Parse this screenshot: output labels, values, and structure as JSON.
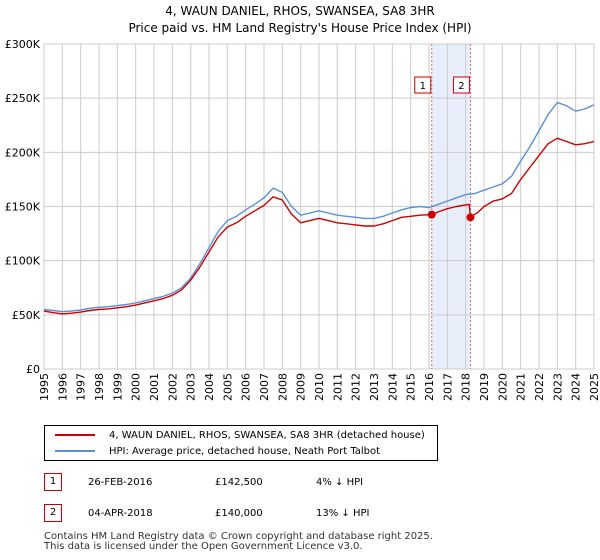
{
  "title_line1": "4, WAUN DANIEL, RHOS, SWANSEA, SA8 3HR",
  "title_line2": "Price paid vs. HM Land Registry's House Price Index (HPI)",
  "chart_data": {
    "type": "line",
    "x_range": [
      1995,
      2025
    ],
    "ylim": [
      0,
      300000
    ],
    "yticks": [
      0,
      50000,
      100000,
      150000,
      200000,
      250000,
      300000
    ],
    "ytick_labels": [
      "£0",
      "£50K",
      "£100K",
      "£150K",
      "£200K",
      "£250K",
      "£300K"
    ],
    "xticks": [
      1995,
      1996,
      1997,
      1998,
      1999,
      2000,
      2001,
      2002,
      2003,
      2004,
      2005,
      2006,
      2007,
      2008,
      2009,
      2010,
      2011,
      2012,
      2013,
      2014,
      2015,
      2016,
      2017,
      2018,
      2019,
      2020,
      2021,
      2022,
      2023,
      2024,
      2025
    ],
    "grid": true,
    "series": [
      {
        "name": "4, WAUN DANIEL, RHOS, SWANSEA, SA8 3HR (detached house)",
        "color": "#cc0000",
        "points": [
          [
            1995.0,
            53500
          ],
          [
            1995.5,
            52000
          ],
          [
            1996.0,
            51000
          ],
          [
            1996.5,
            51500
          ],
          [
            1997.0,
            52500
          ],
          [
            1997.5,
            54000
          ],
          [
            1998.0,
            55000
          ],
          [
            1998.5,
            55500
          ],
          [
            1999.0,
            56500
          ],
          [
            1999.5,
            57500
          ],
          [
            2000.0,
            59000
          ],
          [
            2000.5,
            61000
          ],
          [
            2001.0,
            63000
          ],
          [
            2001.5,
            65000
          ],
          [
            2002.0,
            68000
          ],
          [
            2002.5,
            73000
          ],
          [
            2003.0,
            82000
          ],
          [
            2003.5,
            94000
          ],
          [
            2004.0,
            108000
          ],
          [
            2004.5,
            122000
          ],
          [
            2005.0,
            131000
          ],
          [
            2005.5,
            135000
          ],
          [
            2006.0,
            141000
          ],
          [
            2006.5,
            146000
          ],
          [
            2007.0,
            151000
          ],
          [
            2007.5,
            159000
          ],
          [
            2008.0,
            156000
          ],
          [
            2008.5,
            143000
          ],
          [
            2009.0,
            135000
          ],
          [
            2009.5,
            137000
          ],
          [
            2010.0,
            139000
          ],
          [
            2010.5,
            137000
          ],
          [
            2011.0,
            135000
          ],
          [
            2011.5,
            134000
          ],
          [
            2012.0,
            133000
          ],
          [
            2012.5,
            132000
          ],
          [
            2013.0,
            132000
          ],
          [
            2013.5,
            134000
          ],
          [
            2014.0,
            137000
          ],
          [
            2014.5,
            140000
          ],
          [
            2015.0,
            141000
          ],
          [
            2015.5,
            142000
          ],
          [
            2016.15,
            142500
          ],
          [
            2016.5,
            145000
          ],
          [
            2017.0,
            148000
          ],
          [
            2017.5,
            150000
          ],
          [
            2018.2,
            152000
          ],
          [
            2018.26,
            140000
          ],
          [
            2018.7,
            145000
          ],
          [
            2019.0,
            150000
          ],
          [
            2019.5,
            155000
          ],
          [
            2020.0,
            157000
          ],
          [
            2020.5,
            162000
          ],
          [
            2021.0,
            175000
          ],
          [
            2021.5,
            186000
          ],
          [
            2022.0,
            197000
          ],
          [
            2022.5,
            208000
          ],
          [
            2023.0,
            213000
          ],
          [
            2023.5,
            210000
          ],
          [
            2024.0,
            207000
          ],
          [
            2024.5,
            208000
          ],
          [
            2025.0,
            210000
          ]
        ]
      },
      {
        "name": "HPI: Average price, detached house, Neath Port Talbot",
        "color": "#5b8fd9",
        "points": [
          [
            1995.0,
            55000
          ],
          [
            1995.5,
            54000
          ],
          [
            1996.0,
            53000
          ],
          [
            1996.5,
            53500
          ],
          [
            1997.0,
            54500
          ],
          [
            1997.5,
            56000
          ],
          [
            1998.0,
            57000
          ],
          [
            1998.5,
            57500
          ],
          [
            1999.0,
            58500
          ],
          [
            1999.5,
            59500
          ],
          [
            2000.0,
            61000
          ],
          [
            2000.5,
            63000
          ],
          [
            2001.0,
            65000
          ],
          [
            2001.5,
            67000
          ],
          [
            2002.0,
            70000
          ],
          [
            2002.5,
            75000
          ],
          [
            2003.0,
            84000
          ],
          [
            2003.5,
            97000
          ],
          [
            2004.0,
            112000
          ],
          [
            2004.5,
            127000
          ],
          [
            2005.0,
            137000
          ],
          [
            2005.5,
            141000
          ],
          [
            2006.0,
            147000
          ],
          [
            2006.5,
            152000
          ],
          [
            2007.0,
            158000
          ],
          [
            2007.5,
            167000
          ],
          [
            2008.0,
            163000
          ],
          [
            2008.5,
            150000
          ],
          [
            2009.0,
            142000
          ],
          [
            2009.5,
            144000
          ],
          [
            2010.0,
            146000
          ],
          [
            2010.5,
            144000
          ],
          [
            2011.0,
            142000
          ],
          [
            2011.5,
            141000
          ],
          [
            2012.0,
            140000
          ],
          [
            2012.5,
            139000
          ],
          [
            2013.0,
            139000
          ],
          [
            2013.5,
            141000
          ],
          [
            2014.0,
            144000
          ],
          [
            2014.5,
            147000
          ],
          [
            2015.0,
            149000
          ],
          [
            2015.5,
            150000
          ],
          [
            2016.0,
            149000
          ],
          [
            2016.5,
            152000
          ],
          [
            2017.0,
            155000
          ],
          [
            2017.5,
            158000
          ],
          [
            2018.0,
            161000
          ],
          [
            2018.5,
            162000
          ],
          [
            2019.0,
            165000
          ],
          [
            2019.5,
            168000
          ],
          [
            2020.0,
            171000
          ],
          [
            2020.5,
            178000
          ],
          [
            2021.0,
            192000
          ],
          [
            2021.5,
            205000
          ],
          [
            2022.0,
            220000
          ],
          [
            2022.5,
            235000
          ],
          [
            2023.0,
            246000
          ],
          [
            2023.5,
            243000
          ],
          [
            2024.0,
            238000
          ],
          [
            2024.5,
            240000
          ],
          [
            2025.0,
            244000
          ]
        ]
      }
    ],
    "sales": [
      {
        "id": "1",
        "date": "26-FEB-2016",
        "x": 2016.15,
        "price": 142500,
        "price_label": "£142,500",
        "hpi_rel": "4% ↓ HPI"
      },
      {
        "id": "2",
        "date": "04-APR-2018",
        "x": 2018.26,
        "price": 140000,
        "price_label": "£140,000",
        "hpi_rel": "13% ↓ HPI"
      }
    ]
  },
  "legend": {
    "line1": "4, WAUN DANIEL, RHOS, SWANSEA, SA8 3HR (detached house)",
    "line2": "HPI: Average price, detached house, Neath Port Talbot"
  },
  "footer": {
    "line1": "Contains HM Land Registry data © Crown copyright and database right 2025.",
    "line2": "This data is licensed under the Open Government Licence v3.0."
  }
}
